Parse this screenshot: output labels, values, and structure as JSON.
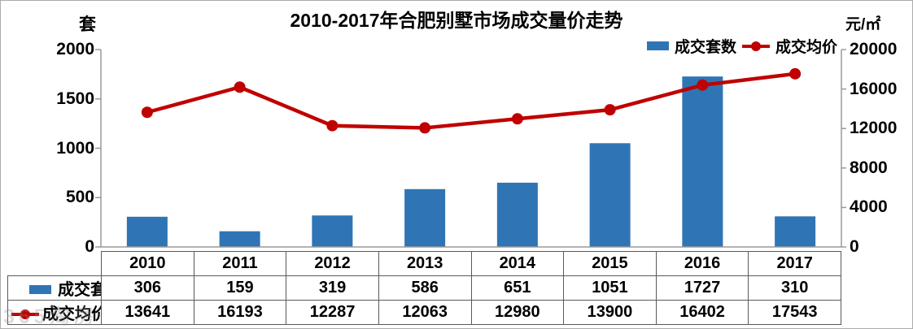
{
  "title": "2010-2017年合肥别墅市场成交量价走势",
  "left_axis": {
    "unit": "套",
    "ticks": [
      "0",
      "500",
      "1000",
      "1500",
      "2000"
    ],
    "min": 0,
    "max": 2000
  },
  "right_axis": {
    "unit": "元/㎡",
    "ticks": [
      "0",
      "4000",
      "8000",
      "12000",
      "16000",
      "20000"
    ],
    "min": 0,
    "max": 20000
  },
  "legend": {
    "bar_label": "成交套数",
    "line_label": "成交均价"
  },
  "colors": {
    "bar": "#2F75B5",
    "line": "#C00000",
    "axis": "#9a9a9a",
    "table_border": "#595959",
    "text": "#000000"
  },
  "watermark": {
    "text": "365淘房"
  },
  "chart_data": {
    "type": "combo",
    "title": "2010-2017年合肥别墅市场成交量价走势",
    "categories": [
      "2010",
      "2011",
      "2012",
      "2013",
      "2014",
      "2015",
      "2016",
      "2017"
    ],
    "series": [
      {
        "name": "成交套数",
        "type": "bar",
        "axis": "left",
        "values": [
          306,
          159,
          319,
          586,
          651,
          1051,
          1727,
          310
        ]
      },
      {
        "name": "成交均价",
        "type": "line",
        "axis": "right",
        "values": [
          13641,
          16193,
          12287,
          12063,
          12980,
          13900,
          16402,
          17543
        ]
      }
    ],
    "left_ylabel": "套",
    "right_ylabel": "元/㎡",
    "left_ylim": [
      0,
      2000
    ],
    "right_ylim": [
      0,
      20000
    ],
    "grid": false,
    "legend_position": "top-right",
    "data_table_shown": true
  }
}
